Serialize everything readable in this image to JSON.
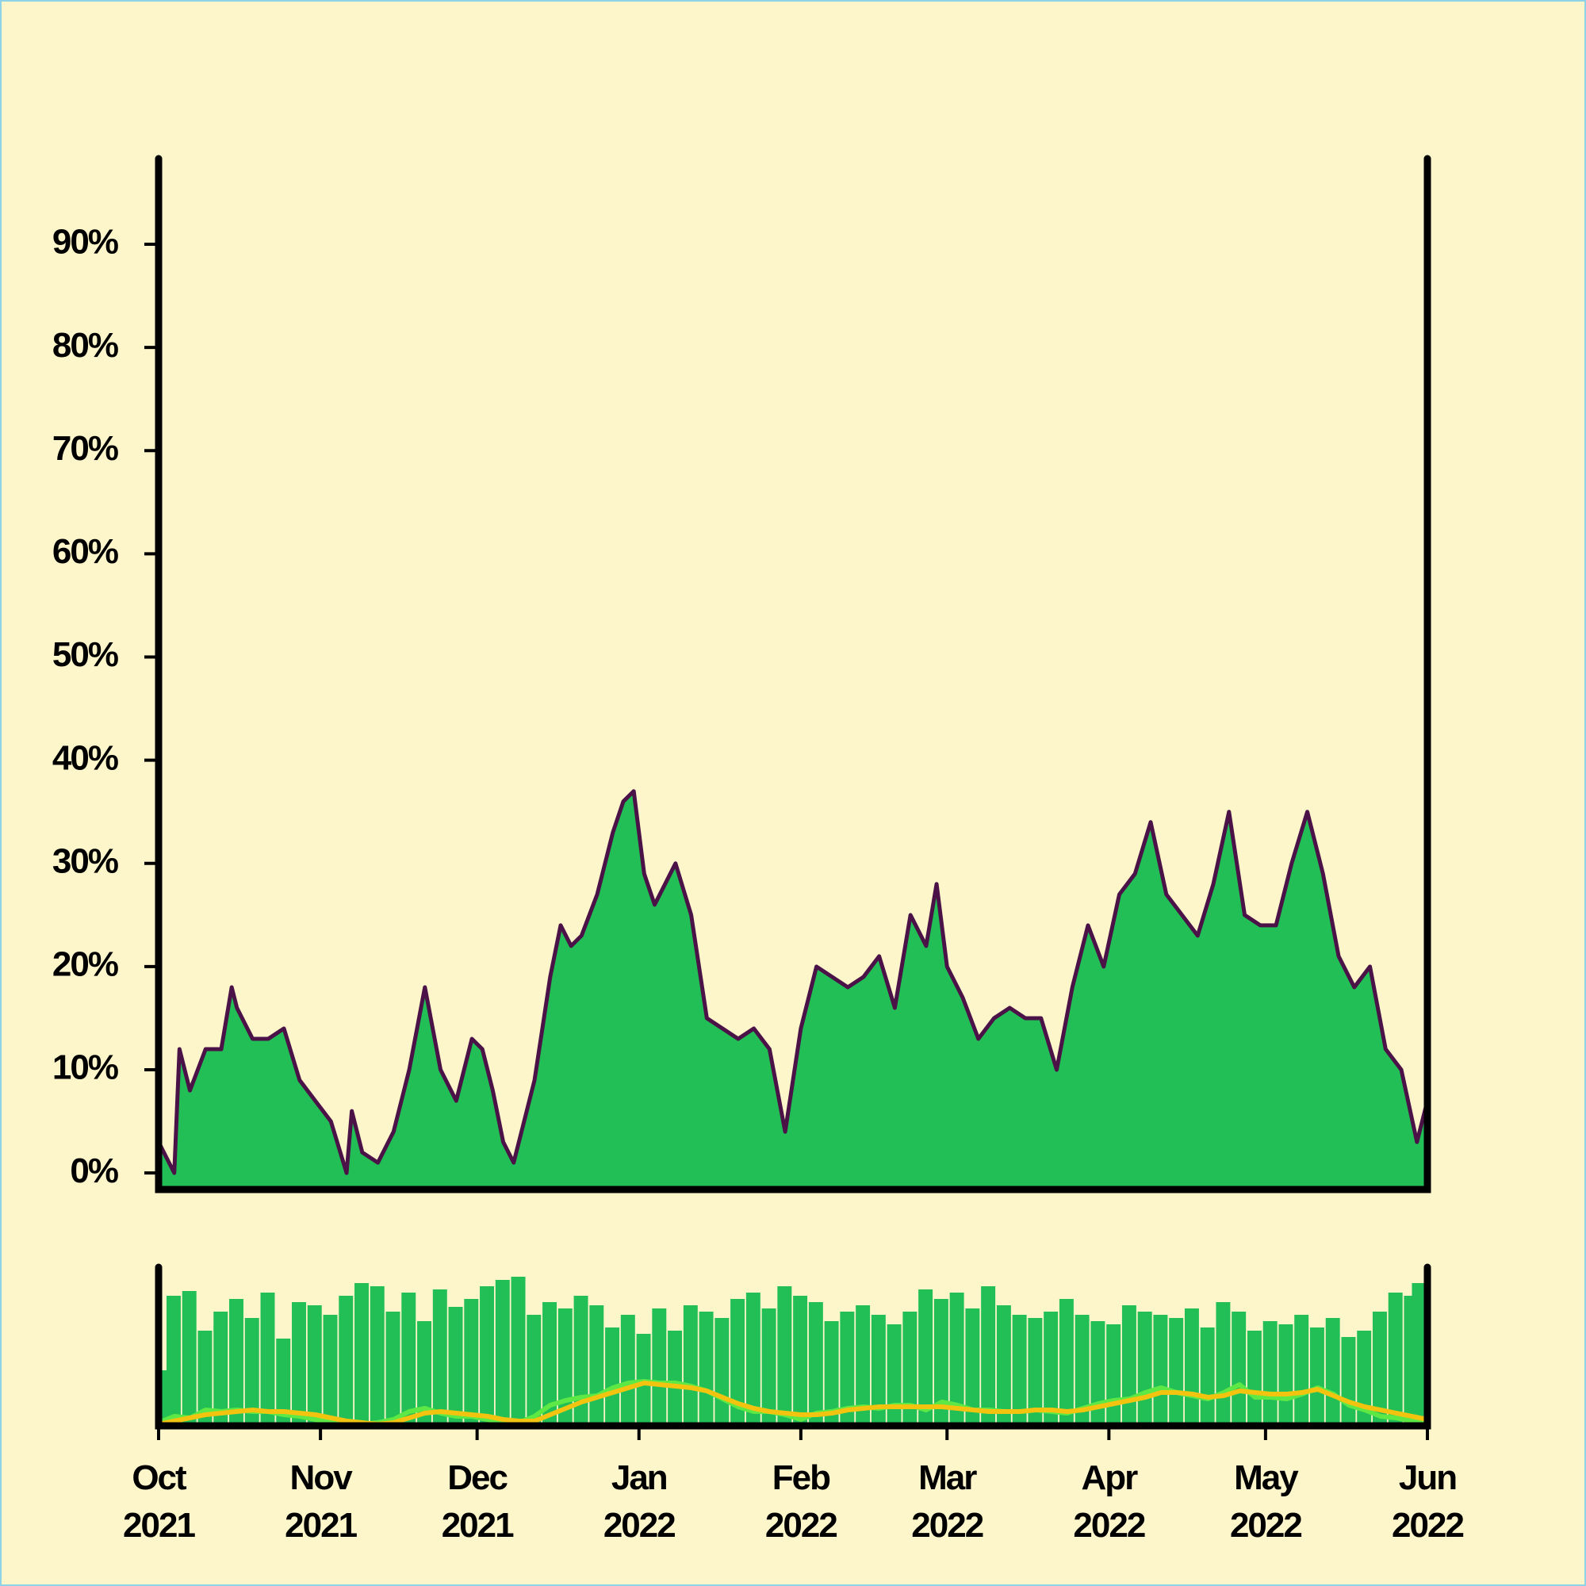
{
  "chart_data": [
    {
      "type": "area",
      "x": [
        0,
        3,
        4,
        6,
        9,
        12,
        14,
        15,
        18,
        21,
        24,
        27,
        30,
        33,
        36,
        37,
        39,
        42,
        45,
        48,
        51,
        54,
        57,
        60,
        62,
        64,
        66,
        68,
        70,
        72,
        75,
        77,
        79,
        81,
        84,
        87,
        89,
        91,
        93,
        95,
        97,
        99,
        102,
        105,
        108,
        111,
        114,
        117,
        120,
        123,
        126,
        129,
        132,
        135,
        138,
        141,
        144,
        147,
        149,
        151,
        154,
        157,
        160,
        163,
        166,
        169,
        172,
        175,
        178,
        181,
        184,
        187,
        190,
        193,
        196,
        199,
        202,
        205,
        208,
        211,
        214,
        217,
        220,
        223,
        226,
        229,
        232,
        235,
        238,
        241,
        243
      ],
      "series": [
        {
          "color": "#22bf57",
          "line_color": "#4b1248",
          "values": [
            3,
            0,
            12,
            8,
            12,
            12,
            18,
            16,
            13,
            13,
            14,
            9,
            7,
            5,
            0,
            6,
            2,
            1,
            4,
            10,
            18,
            10,
            7,
            13,
            12,
            8,
            3,
            1,
            5,
            9,
            19,
            24,
            22,
            23,
            27,
            33,
            36,
            37,
            29,
            26,
            28,
            30,
            25,
            15,
            14,
            13,
            14,
            12,
            4,
            14,
            20,
            19,
            18,
            19,
            21,
            16,
            25,
            22,
            28,
            20,
            17,
            13,
            15,
            16,
            15,
            15,
            10,
            18,
            24,
            20,
            27,
            29,
            34,
            27,
            25,
            23,
            28,
            35,
            25,
            24,
            24,
            30,
            35,
            29,
            21,
            18,
            20,
            12,
            10,
            3,
            7
          ]
        }
      ],
      "xlim": [
        0,
        243
      ],
      "xticks": [
        {
          "value": 0,
          "label": "Oct 2021"
        },
        {
          "value": 31,
          "label": "Nov 2021"
        },
        {
          "value": 61,
          "label": "Dec 2021"
        },
        {
          "value": 92,
          "label": "Jan 2022"
        },
        {
          "value": 123,
          "label": "Feb 2022"
        },
        {
          "value": 151,
          "label": "Mar 2022"
        },
        {
          "value": 182,
          "label": "Apr 2022"
        },
        {
          "value": 212,
          "label": "May 2022"
        },
        {
          "value": 243,
          "label": "Jun 2022"
        }
      ],
      "ylim": [
        -1.6,
        98.3
      ],
      "yticks": [
        {
          "value": 0,
          "label": "0%"
        },
        {
          "value": 10,
          "label": "10%"
        },
        {
          "value": 20,
          "label": "20%"
        },
        {
          "value": 30,
          "label": "30%"
        },
        {
          "value": 40,
          "label": "40%"
        },
        {
          "value": 50,
          "label": "50%"
        },
        {
          "value": 60,
          "label": "60%"
        },
        {
          "value": 70,
          "label": "70%"
        },
        {
          "value": 80,
          "label": "80%"
        },
        {
          "value": 90,
          "label": "90%"
        }
      ]
    },
    {
      "type": "bar_line",
      "x": [
        0,
        3,
        6,
        9,
        12,
        15,
        18,
        21,
        24,
        27,
        30,
        33,
        36,
        39,
        42,
        45,
        48,
        51,
        54,
        57,
        60,
        63,
        66,
        69,
        72,
        75,
        78,
        81,
        84,
        87,
        90,
        93,
        96,
        99,
        102,
        105,
        108,
        111,
        114,
        117,
        120,
        123,
        126,
        129,
        132,
        135,
        138,
        141,
        144,
        147,
        150,
        153,
        156,
        159,
        162,
        165,
        168,
        171,
        174,
        177,
        180,
        183,
        186,
        189,
        192,
        195,
        198,
        201,
        204,
        207,
        210,
        213,
        216,
        219,
        222,
        225,
        228,
        231,
        234,
        237,
        240,
        243
      ],
      "xlim": [
        0,
        243
      ],
      "ylim": [
        0,
        100
      ],
      "series": [
        {
          "kind": "bar",
          "color": "#22bf57",
          "values": [
            35,
            82,
            85,
            60,
            72,
            80,
            68,
            84,
            55,
            78,
            76,
            70,
            82,
            90,
            88,
            72,
            84,
            66,
            86,
            75,
            80,
            88,
            92,
            94,
            70,
            78,
            74,
            82,
            76,
            62,
            70,
            58,
            74,
            60,
            76,
            72,
            68,
            80,
            84,
            74,
            88,
            82,
            78,
            66,
            72,
            76,
            70,
            64,
            72,
            86,
            80,
            84,
            74,
            88,
            76,
            70,
            68,
            72,
            80,
            70,
            66,
            64,
            76,
            72,
            70,
            68,
            74,
            62,
            78,
            72,
            60,
            66,
            64,
            70,
            62,
            68,
            56,
            60,
            72,
            84,
            82,
            90
          ]
        },
        {
          "kind": "line",
          "color": "#5ee845",
          "values": [
            2,
            6,
            5,
            10,
            9,
            10,
            9,
            9,
            7,
            6,
            4,
            2,
            1,
            1,
            2,
            4,
            9,
            11,
            8,
            6,
            6,
            4,
            2,
            2,
            6,
            13,
            16,
            18,
            19,
            24,
            27,
            28,
            27,
            27,
            25,
            22,
            17,
            12,
            9,
            9,
            7,
            4,
            8,
            9,
            11,
            12,
            11,
            13,
            13,
            10,
            15,
            13,
            10,
            10,
            9,
            9,
            10,
            9,
            8,
            11,
            14,
            16,
            17,
            21,
            24,
            21,
            19,
            17,
            21,
            26,
            18,
            18,
            17,
            20,
            24,
            20,
            13,
            10,
            6,
            5,
            3,
            2
          ]
        },
        {
          "kind": "line",
          "color": "#f2c40f",
          "values": [
            1,
            3,
            5,
            7,
            8,
            9,
            10,
            9,
            9,
            8,
            7,
            5,
            3,
            2,
            1,
            2,
            5,
            8,
            9,
            8,
            7,
            6,
            4,
            3,
            3,
            7,
            11,
            15,
            18,
            21,
            24,
            27,
            26,
            25,
            24,
            22,
            18,
            14,
            11,
            9,
            8,
            7,
            7,
            8,
            10,
            11,
            12,
            12,
            12,
            12,
            12,
            11,
            10,
            9,
            9,
            9,
            10,
            10,
            9,
            10,
            12,
            14,
            16,
            18,
            21,
            21,
            20,
            18,
            19,
            22,
            21,
            20,
            20,
            21,
            23,
            19,
            15,
            12,
            10,
            8,
            6,
            4
          ]
        }
      ]
    }
  ]
}
